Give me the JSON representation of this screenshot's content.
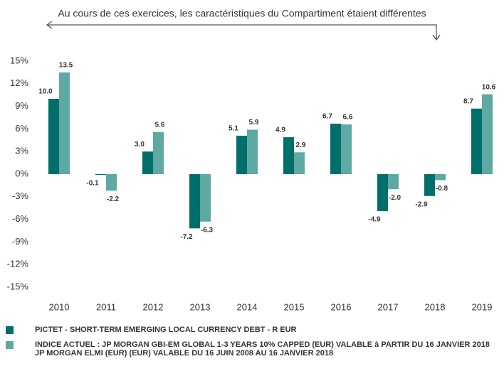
{
  "chart_data": {
    "type": "bar",
    "annotation": "Au cours de ces exercices, les caractéristiques du Compartiment étaient différentes",
    "categories": [
      "2010",
      "2011",
      "2012",
      "2013",
      "2014",
      "2015",
      "2016",
      "2017",
      "2018",
      "2019"
    ],
    "series": [
      {
        "name": "PICTET - SHORT-TERM EMERGING LOCAL CURRENCY DEBT - R EUR",
        "color": "#006e6a",
        "values": [
          10.0,
          -0.1,
          3.0,
          -7.2,
          5.1,
          4.9,
          6.7,
          -4.9,
          -2.9,
          8.7
        ],
        "value_labels": [
          "10.0",
          "-0.1",
          "3.0",
          "-7.2",
          "5.1",
          "4.9",
          "6.7",
          "-4.9",
          "-2.9",
          "8.7"
        ]
      },
      {
        "name": "INDICE ACTUEL : JP MORGAN GBI-EM GLOBAL 1-3 YEARS 10% CAPPED (EUR) VALABLE à PARTIR DU 16 JANVIER 2018",
        "color": "#5fa9a3",
        "values": [
          13.5,
          -2.2,
          5.6,
          -6.3,
          5.9,
          2.9,
          6.6,
          -2.0,
          -0.8,
          10.6
        ],
        "value_labels": [
          "13.5",
          "-2.2",
          "5.6",
          "-6.3",
          "5.9",
          "2.9",
          "6.6",
          "-2.0",
          "-0.8",
          "10.6"
        ]
      }
    ],
    "legend_note": "JP MORGAN ELMI (EUR) (EUR) VALABLE DU 16 JUIN 2008 AU 16 JANVIER 2018",
    "ylim": [
      -15,
      15
    ],
    "yticks": [
      {
        "value": 15,
        "label": "15%"
      },
      {
        "value": 12,
        "label": "12%"
      },
      {
        "value": 9,
        "label": "9%"
      },
      {
        "value": 6,
        "label": "6%"
      },
      {
        "value": 3,
        "label": "3%"
      },
      {
        "value": 0,
        "label": "0%"
      },
      {
        "value": -3,
        "label": "-3%"
      },
      {
        "value": -6,
        "label": "-6%"
      },
      {
        "value": -9,
        "label": "-9%"
      },
      {
        "value": -12,
        "label": "-12%"
      },
      {
        "value": -15,
        "label": "-15%"
      }
    ],
    "grid": false
  }
}
